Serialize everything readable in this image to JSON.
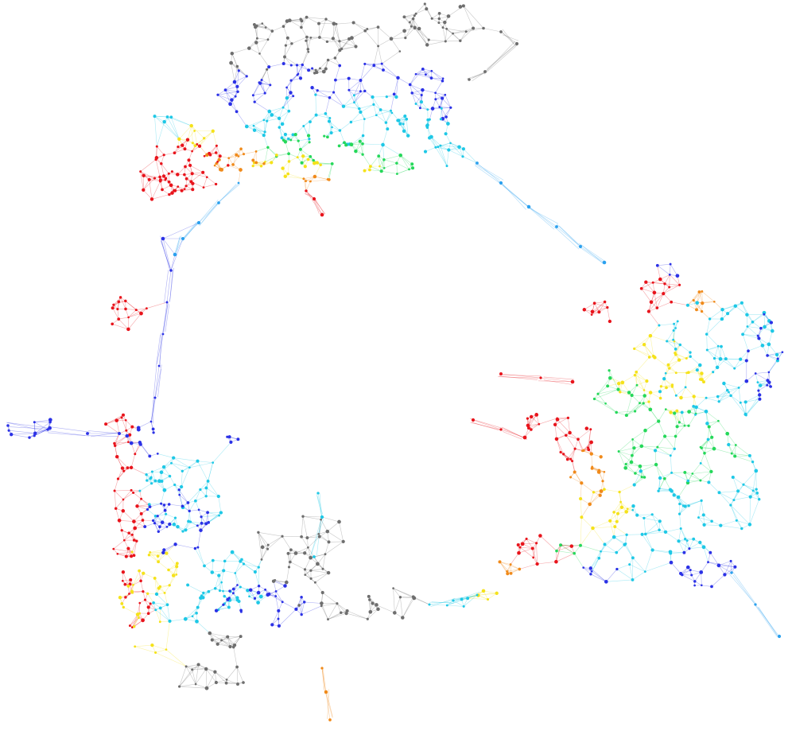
{
  "graph": {
    "type": "network-layout",
    "background": "#ffffff",
    "edge_opacity": 0.38,
    "node_colors": {
      "red": "#e8141c",
      "orange": "#f08a1a",
      "yellow": "#f5e21a",
      "lime": "#a8e21e",
      "green": "#25d85a",
      "cyan": "#1ec8e6",
      "lightblue": "#2aa0ee",
      "blue": "#2b31e6",
      "gray": "#6e6e6e"
    },
    "clusters": [
      {
        "name": "top-gray",
        "color": "gray"
      },
      {
        "name": "top-blue",
        "color": "blue"
      },
      {
        "name": "top-cyan",
        "color": "cyan"
      },
      {
        "name": "top-green",
        "color": "green"
      },
      {
        "name": "top-yellow",
        "color": "yellow"
      },
      {
        "name": "top-orange",
        "color": "orange"
      },
      {
        "name": "top-red",
        "color": "red"
      },
      {
        "name": "left-red",
        "color": "red"
      },
      {
        "name": "left-yellow",
        "color": "yellow"
      },
      {
        "name": "left-cyan",
        "color": "cyan"
      },
      {
        "name": "left-blue",
        "color": "blue"
      },
      {
        "name": "bottom-gray",
        "color": "gray"
      },
      {
        "name": "right-red",
        "color": "red"
      },
      {
        "name": "right-orange",
        "color": "orange"
      },
      {
        "name": "right-yellow",
        "color": "yellow"
      },
      {
        "name": "right-green",
        "color": "green"
      },
      {
        "name": "right-cyan",
        "color": "cyan"
      },
      {
        "name": "right-blue",
        "color": "blue"
      }
    ]
  }
}
